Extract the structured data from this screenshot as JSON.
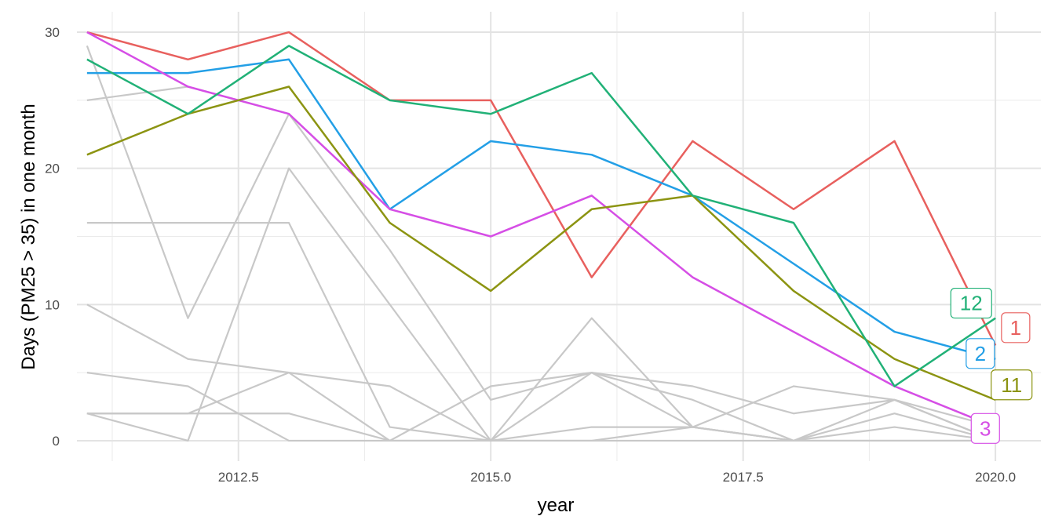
{
  "chart_data": {
    "type": "line",
    "title": "",
    "xlabel": "year",
    "ylabel": "Days (PM25 > 35) in one month",
    "xlim": [
      2010.9,
      2020.45
    ],
    "ylim": [
      -1.5,
      31.5
    ],
    "x_ticks": [
      2012.5,
      2015.0,
      2017.5,
      2020.0
    ],
    "x_tick_labels": [
      "2012.5",
      "2015.0",
      "2017.5",
      "2020.0"
    ],
    "y_ticks": [
      0,
      10,
      20,
      30
    ],
    "y_tick_labels": [
      "0",
      "10",
      "20",
      "30"
    ],
    "grid": true,
    "legend": "none",
    "x": [
      2011,
      2012,
      2013,
      2014,
      2015,
      2016,
      2017,
      2018,
      2019,
      2020
    ],
    "background_series": [
      {
        "values": [
          29,
          9,
          24,
          14,
          3,
          5,
          3,
          0,
          3,
          1
        ]
      },
      {
        "values": [
          25,
          26,
          24,
          17,
          15,
          18,
          12,
          8,
          4,
          1
        ]
      },
      {
        "values": [
          16,
          16,
          16,
          1,
          0,
          1,
          1,
          0,
          0,
          0
        ]
      },
      {
        "values": [
          2,
          0,
          20,
          10,
          0,
          9,
          1,
          4,
          3,
          0
        ]
      },
      {
        "values": [
          10,
          6,
          5,
          4,
          0,
          5,
          4,
          2,
          3,
          0
        ]
      },
      {
        "values": [
          5,
          4,
          0,
          0,
          0,
          0,
          1,
          0,
          2,
          0
        ]
      },
      {
        "values": [
          2,
          2,
          2,
          0,
          4,
          5,
          1,
          0,
          1,
          0
        ]
      },
      {
        "values": [
          2,
          2,
          5,
          0,
          0,
          0,
          0,
          0,
          0,
          0
        ]
      }
    ],
    "background_color": "#c8c8c8",
    "series": [
      {
        "label": "1",
        "color": "#e8605e",
        "values": [
          30,
          28,
          30,
          25,
          25,
          12,
          22,
          17,
          22,
          7
        ]
      },
      {
        "label": "2",
        "color": "#239fe6",
        "values": [
          27,
          27,
          28,
          17,
          22,
          21,
          18,
          13,
          8,
          6
        ]
      },
      {
        "label": "3",
        "color": "#d64ee6",
        "values": [
          30,
          26,
          24,
          17,
          15,
          18,
          12,
          8,
          4,
          1
        ]
      },
      {
        "label": "11",
        "color": "#8c9412",
        "values": [
          21,
          24,
          26,
          16,
          11,
          17,
          18,
          11,
          6,
          3
        ]
      },
      {
        "label": "12",
        "color": "#21b177",
        "values": [
          28,
          24,
          29,
          25,
          24,
          27,
          18,
          16,
          4,
          9
        ]
      }
    ]
  }
}
